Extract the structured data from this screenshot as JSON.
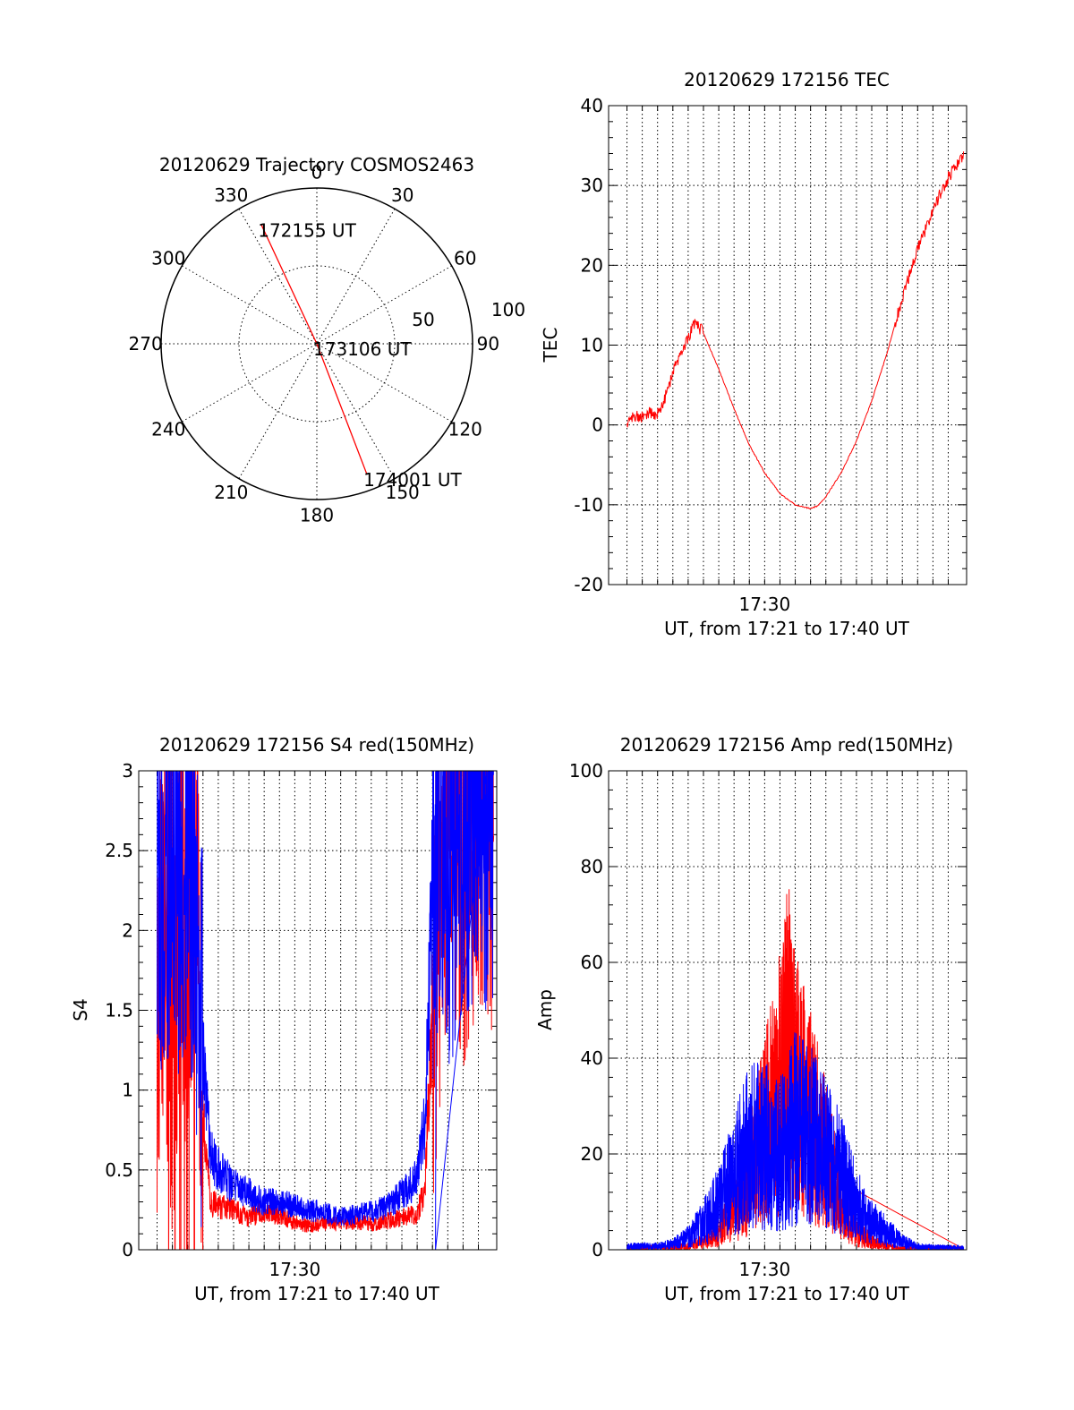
{
  "chart_data": [
    {
      "type": "polar",
      "title": "20120629 Trajectory COSMOS2463",
      "azimuth_labels": [
        "0",
        "30",
        "60",
        "90",
        "120",
        "150",
        "180",
        "210",
        "240",
        "270",
        "300",
        "330"
      ],
      "radial_labels": [
        "50",
        "100"
      ],
      "rlim": [
        0,
        100
      ],
      "series": [
        {
          "color": "#ff0000",
          "points": [
            {
              "az": 335,
              "r": 84
            },
            {
              "az": 90,
              "r": 0
            },
            {
              "az": 159,
              "r": 90
            }
          ]
        }
      ],
      "annotations": [
        {
          "text": "172155 UT",
          "az": 335,
          "r": 84
        },
        {
          "text": "173106 UT",
          "az": 90,
          "r": 0
        },
        {
          "text": "174001 UT",
          "az": 159,
          "r": 90
        }
      ]
    },
    {
      "type": "line",
      "title": "20120629 172156 TEC",
      "ylabel": "TEC",
      "xlabel": "UT, from 17:21 to 17:40 UT",
      "xtick_labels": [
        {
          "t": 9,
          "label": "17:30"
        }
      ],
      "xlim": [
        -1.2,
        22.2
      ],
      "ylim": [
        -20,
        40
      ],
      "yticks": [
        -20,
        -10,
        0,
        10,
        20,
        30,
        40
      ],
      "grid": true,
      "series": [
        {
          "color": "#ff0000",
          "points": [
            [
              0,
              0
            ],
            [
              0.5,
              1.3
            ],
            [
              1,
              0.9
            ],
            [
              1.5,
              1.6
            ],
            [
              2,
              1.3
            ],
            [
              2.5,
              3.5
            ],
            [
              3,
              6.5
            ],
            [
              3.5,
              9
            ],
            [
              4,
              11
            ],
            [
              4.5,
              12.8
            ],
            [
              5,
              11.5
            ],
            [
              6,
              7
            ],
            [
              7,
              2
            ],
            [
              8,
              -2.5
            ],
            [
              9,
              -6
            ],
            [
              10,
              -8.6
            ],
            [
              11,
              -10
            ],
            [
              12,
              -10.5
            ],
            [
              12.5,
              -10.1
            ],
            [
              13,
              -9
            ],
            [
              14,
              -6
            ],
            [
              15,
              -2
            ],
            [
              16,
              3
            ],
            [
              17,
              9
            ],
            [
              18,
              16
            ],
            [
              19,
              22
            ],
            [
              20,
              27
            ],
            [
              21,
              31
            ],
            [
              22,
              34
            ]
          ]
        }
      ]
    },
    {
      "type": "line",
      "title": "20120629 172156 S4 red(150MHz)",
      "ylabel": "S4",
      "xlabel": "UT, from 17:21 to 17:40 UT",
      "xtick_labels": [
        {
          "t": 9,
          "label": "17:30"
        }
      ],
      "xlim": [
        -1.2,
        22.2
      ],
      "ylim": [
        0,
        3
      ],
      "yticks": [
        0,
        0.5,
        1,
        1.5,
        2,
        2.5,
        3
      ],
      "ytick_labels": [
        "0",
        "0.5",
        "1",
        "1.5",
        "2",
        "2.5",
        "3"
      ],
      "grid": true,
      "series": [
        {
          "color": "#ff0000",
          "points": [
            [
              0,
              1.5
            ],
            [
              0.5,
              2.2
            ],
            [
              1,
              1.2
            ],
            [
              1.5,
              2.4
            ],
            [
              2,
              1.6
            ],
            [
              2.5,
              2.6
            ],
            [
              3,
              0.8
            ],
            [
              3.5,
              0.3
            ],
            [
              4,
              0.27
            ],
            [
              5,
              0.25
            ],
            [
              6,
              0.2
            ],
            [
              7,
              0.24
            ],
            [
              8,
              0.22
            ],
            [
              9,
              0.17
            ],
            [
              10,
              0.15
            ],
            [
              11,
              0.17
            ],
            [
              12,
              0.16
            ],
            [
              13,
              0.18
            ],
            [
              14,
              0.16
            ],
            [
              15,
              0.18
            ],
            [
              16,
              0.2
            ],
            [
              17,
              0.22
            ],
            [
              17.5,
              0.4
            ],
            [
              18,
              1.5
            ],
            [
              18.5,
              2.1
            ],
            [
              19,
              2.6
            ],
            [
              20,
              2.4
            ],
            [
              21,
              2.8
            ],
            [
              22,
              2.5
            ]
          ]
        },
        {
          "color": "#0000ff",
          "points": [
            [
              0,
              2.6
            ],
            [
              0.5,
              2.2
            ],
            [
              1,
              2.8
            ],
            [
              1.5,
              2.3
            ],
            [
              2,
              2.5
            ],
            [
              2.5,
              2
            ],
            [
              3,
              1.2
            ],
            [
              3.5,
              0.6
            ],
            [
              4,
              0.5
            ],
            [
              5,
              0.4
            ],
            [
              6,
              0.35
            ],
            [
              7,
              0.3
            ],
            [
              8,
              0.3
            ],
            [
              9,
              0.27
            ],
            [
              10,
              0.25
            ],
            [
              11,
              0.23
            ],
            [
              12,
              0.21
            ],
            [
              13,
              0.22
            ],
            [
              14,
              0.24
            ],
            [
              15,
              0.27
            ],
            [
              16,
              0.35
            ],
            [
              17,
              0.45
            ],
            [
              17.5,
              0.8
            ],
            [
              18,
              2.2
            ],
            [
              18.5,
              2.8
            ],
            [
              19,
              2.4
            ],
            [
              20,
              2.7
            ],
            [
              21,
              2.9
            ],
            [
              22,
              2.6
            ]
          ]
        }
      ]
    },
    {
      "type": "line",
      "title": "20120629 172156 Amp red(150MHz)",
      "ylabel": "Amp",
      "xlabel": "UT, from 17:21 to 17:40 UT",
      "xtick_labels": [
        {
          "t": 9,
          "label": "17:30"
        }
      ],
      "xlim": [
        -1.2,
        22.2
      ],
      "ylim": [
        0,
        100
      ],
      "yticks": [
        0,
        20,
        40,
        60,
        80,
        100
      ],
      "grid": true,
      "series": [
        {
          "color": "#ff0000",
          "points": [
            [
              0,
              0.5
            ],
            [
              2,
              0.8
            ],
            [
              4,
              1
            ],
            [
              5,
              2
            ],
            [
              6,
              4
            ],
            [
              7,
              8
            ],
            [
              8,
              15
            ],
            [
              9,
              25
            ],
            [
              10,
              35
            ],
            [
              10.5,
              45
            ],
            [
              11,
              35
            ],
            [
              12,
              28
            ],
            [
              13,
              20
            ],
            [
              14,
              10
            ],
            [
              15,
              4
            ],
            [
              16,
              2
            ],
            [
              17,
              1
            ],
            [
              18,
              0.5
            ],
            [
              19,
              0.4
            ],
            [
              20,
              0.3
            ],
            [
              22,
              0.3
            ]
          ]
        },
        {
          "color": "#0000ff",
          "points": [
            [
              0,
              1
            ],
            [
              2,
              1
            ],
            [
              3,
              1.5
            ],
            [
              4,
              3
            ],
            [
              5,
              6
            ],
            [
              6,
              10
            ],
            [
              7,
              16
            ],
            [
              8,
              22
            ],
            [
              9,
              22
            ],
            [
              10,
              20
            ],
            [
              11,
              26
            ],
            [
              12,
              24
            ],
            [
              13,
              20
            ],
            [
              14,
              16
            ],
            [
              15,
              10
            ],
            [
              16,
              6
            ],
            [
              17,
              4
            ],
            [
              18,
              2
            ],
            [
              19,
              1
            ],
            [
              20,
              0.8
            ],
            [
              22,
              0.7
            ]
          ]
        }
      ]
    }
  ]
}
